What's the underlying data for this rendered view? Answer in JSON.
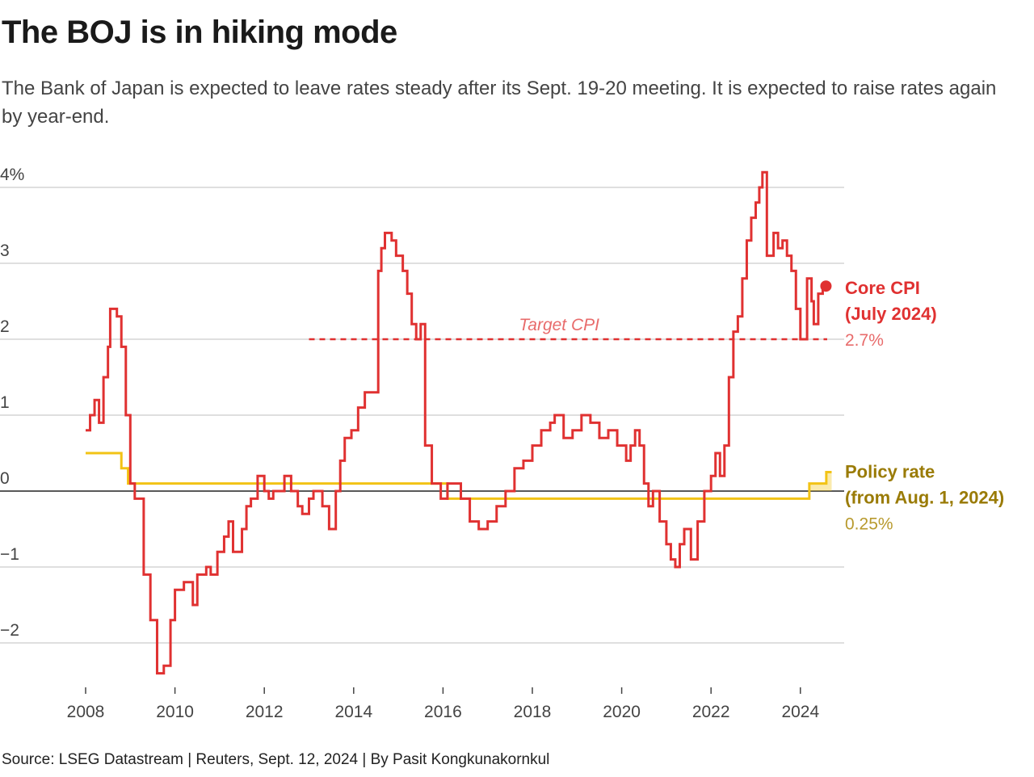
{
  "chart_data": {
    "type": "line",
    "title": "The BOJ is in hiking mode",
    "subtitle": "The Bank of Japan is expected to leave rates steady after its Sept. 19-20 meeting. It is expected to raise rates again by year-end.",
    "source": "Source: LSEG Datastream | Reuters, Sept. 12, 2024 | By Pasit Kongkunakornkul",
    "xlabel": "",
    "ylabel": "",
    "xlim": [
      2008,
      2025
    ],
    "ylim": [
      -2.5,
      4.3
    ],
    "x_ticks": [
      2008,
      2010,
      2012,
      2014,
      2016,
      2018,
      2020,
      2022,
      2024
    ],
    "y_ticks": [
      {
        "value": 4,
        "label": "4%"
      },
      {
        "value": 3,
        "label": "3"
      },
      {
        "value": 2,
        "label": "2"
      },
      {
        "value": 1,
        "label": "1"
      },
      {
        "value": 0,
        "label": "0"
      },
      {
        "value": -1,
        "label": "−1"
      },
      {
        "value": -2,
        "label": "−2"
      }
    ],
    "colors": {
      "cpi": "#e03131",
      "policy": "#f2c315",
      "policy_label": "#9a7b06",
      "grid": "#cccccc",
      "zero": "#222222"
    },
    "target": {
      "label": "Target CPI",
      "value": 2,
      "x_start": 2013.0,
      "x_end": 2024.6
    },
    "series": [
      {
        "name": "Core CPI",
        "label_line1": "Core CPI",
        "label_line2": "(July 2024)",
        "last_value_label": "2.7%",
        "points": [
          [
            2008.0,
            0.8
          ],
          [
            2008.1,
            1.0
          ],
          [
            2008.2,
            1.2
          ],
          [
            2008.3,
            0.9
          ],
          [
            2008.4,
            1.5
          ],
          [
            2008.5,
            1.9
          ],
          [
            2008.55,
            2.4
          ],
          [
            2008.7,
            2.3
          ],
          [
            2008.8,
            1.9
          ],
          [
            2008.9,
            1.0
          ],
          [
            2009.0,
            0.1
          ],
          [
            2009.1,
            -0.1
          ],
          [
            2009.3,
            -1.1
          ],
          [
            2009.45,
            -1.7
          ],
          [
            2009.6,
            -2.4
          ],
          [
            2009.75,
            -2.3
          ],
          [
            2009.9,
            -1.7
          ],
          [
            2010.0,
            -1.3
          ],
          [
            2010.2,
            -1.2
          ],
          [
            2010.4,
            -1.5
          ],
          [
            2010.5,
            -1.1
          ],
          [
            2010.7,
            -1.0
          ],
          [
            2010.8,
            -1.1
          ],
          [
            2010.95,
            -0.8
          ],
          [
            2011.1,
            -0.6
          ],
          [
            2011.2,
            -0.4
          ],
          [
            2011.3,
            -0.8
          ],
          [
            2011.5,
            -0.5
          ],
          [
            2011.6,
            -0.2
          ],
          [
            2011.7,
            -0.1
          ],
          [
            2011.85,
            0.2
          ],
          [
            2012.0,
            0.0
          ],
          [
            2012.1,
            -0.1
          ],
          [
            2012.2,
            0.0
          ],
          [
            2012.3,
            0.0
          ],
          [
            2012.45,
            0.2
          ],
          [
            2012.6,
            0.0
          ],
          [
            2012.75,
            -0.2
          ],
          [
            2012.85,
            -0.3
          ],
          [
            2013.0,
            -0.1
          ],
          [
            2013.1,
            0.0
          ],
          [
            2013.3,
            -0.2
          ],
          [
            2013.45,
            -0.5
          ],
          [
            2013.6,
            0.0
          ],
          [
            2013.7,
            0.4
          ],
          [
            2013.8,
            0.7
          ],
          [
            2013.95,
            0.8
          ],
          [
            2014.1,
            1.1
          ],
          [
            2014.25,
            1.3
          ],
          [
            2014.55,
            2.9
          ],
          [
            2014.62,
            3.2
          ],
          [
            2014.7,
            3.4
          ],
          [
            2014.85,
            3.3
          ],
          [
            2014.95,
            3.1
          ],
          [
            2015.1,
            2.9
          ],
          [
            2015.2,
            2.6
          ],
          [
            2015.3,
            2.2
          ],
          [
            2015.4,
            2.0
          ],
          [
            2015.5,
            2.2
          ],
          [
            2015.6,
            0.6
          ],
          [
            2015.75,
            0.1
          ],
          [
            2015.95,
            -0.1
          ],
          [
            2016.1,
            0.1
          ],
          [
            2016.25,
            0.1
          ],
          [
            2016.4,
            -0.1
          ],
          [
            2016.6,
            -0.4
          ],
          [
            2016.8,
            -0.5
          ],
          [
            2017.0,
            -0.4
          ],
          [
            2017.2,
            -0.2
          ],
          [
            2017.4,
            0.0
          ],
          [
            2017.6,
            0.3
          ],
          [
            2017.8,
            0.4
          ],
          [
            2018.0,
            0.6
          ],
          [
            2018.2,
            0.8
          ],
          [
            2018.4,
            0.9
          ],
          [
            2018.5,
            1.0
          ],
          [
            2018.7,
            0.7
          ],
          [
            2018.9,
            0.8
          ],
          [
            2019.1,
            1.0
          ],
          [
            2019.3,
            0.9
          ],
          [
            2019.5,
            0.7
          ],
          [
            2019.7,
            0.8
          ],
          [
            2019.9,
            0.6
          ],
          [
            2020.1,
            0.4
          ],
          [
            2020.2,
            0.6
          ],
          [
            2020.3,
            0.8
          ],
          [
            2020.4,
            0.6
          ],
          [
            2020.5,
            0.1
          ],
          [
            2020.6,
            -0.2
          ],
          [
            2020.7,
            0.0
          ],
          [
            2020.85,
            -0.4
          ],
          [
            2021.0,
            -0.7
          ],
          [
            2021.1,
            -0.9
          ],
          [
            2021.2,
            -1.0
          ],
          [
            2021.3,
            -0.7
          ],
          [
            2021.4,
            -0.5
          ],
          [
            2021.55,
            -0.9
          ],
          [
            2021.7,
            -0.4
          ],
          [
            2021.85,
            0.0
          ],
          [
            2022.0,
            0.2
          ],
          [
            2022.1,
            0.5
          ],
          [
            2022.2,
            0.2
          ],
          [
            2022.3,
            0.6
          ],
          [
            2022.4,
            1.5
          ],
          [
            2022.5,
            2.1
          ],
          [
            2022.6,
            2.3
          ],
          [
            2022.7,
            2.8
          ],
          [
            2022.8,
            3.3
          ],
          [
            2022.9,
            3.6
          ],
          [
            2023.0,
            3.8
          ],
          [
            2023.08,
            4.0
          ],
          [
            2023.15,
            4.2
          ],
          [
            2023.25,
            3.1
          ],
          [
            2023.4,
            3.4
          ],
          [
            2023.5,
            3.2
          ],
          [
            2023.6,
            3.3
          ],
          [
            2023.7,
            3.1
          ],
          [
            2023.8,
            2.9
          ],
          [
            2023.9,
            2.4
          ],
          [
            2024.0,
            2.0
          ],
          [
            2024.1,
            2.0
          ],
          [
            2024.15,
            2.8
          ],
          [
            2024.25,
            2.5
          ],
          [
            2024.3,
            2.2
          ],
          [
            2024.4,
            2.6
          ],
          [
            2024.5,
            2.7
          ]
        ]
      },
      {
        "name": "Policy rate",
        "label_line1": "Policy rate",
        "label_line2": "(from Aug. 1, 2024)",
        "last_value_label": "0.25%",
        "points": [
          [
            2008.0,
            0.5
          ],
          [
            2008.8,
            0.5
          ],
          [
            2008.8,
            0.3
          ],
          [
            2008.95,
            0.3
          ],
          [
            2008.95,
            0.1
          ],
          [
            2016.1,
            0.1
          ],
          [
            2016.1,
            -0.1
          ],
          [
            2024.2,
            -0.1
          ],
          [
            2024.2,
            0.1
          ],
          [
            2024.58,
            0.1
          ],
          [
            2024.58,
            0.25
          ],
          [
            2024.7,
            0.25
          ]
        ]
      }
    ]
  }
}
